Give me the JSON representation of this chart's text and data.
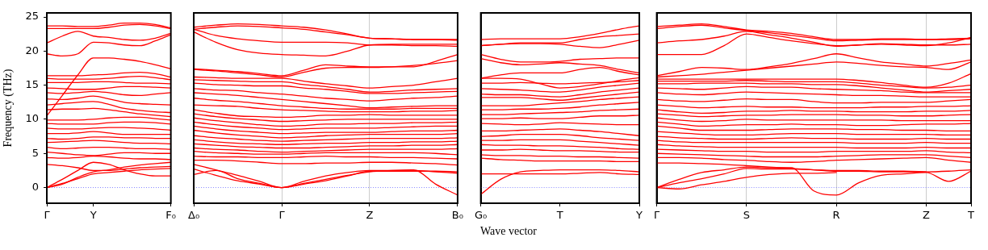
{
  "chart_data": [
    {
      "type": "line",
      "ylabel": "Frequency (THz)",
      "marker": "none",
      "line_style": "solid",
      "categories": [
        "Γ",
        null,
        null,
        "Y",
        null,
        null,
        null,
        null,
        "F₀"
      ],
      "ylim": [
        -2.3,
        25.6
      ],
      "yticks": [
        0,
        5,
        10,
        15,
        20,
        25
      ],
      "ref_lines": [
        {
          "axis": "y",
          "value": 0,
          "color": "#6666ff",
          "line_style": "dotted"
        }
      ],
      "series": [
        {
          "color": "#ff0000",
          "values": [
            23.7,
            23.7,
            23.6,
            23.6,
            23.8,
            24.1,
            24.1,
            23.9,
            23.4
          ]
        },
        {
          "color": "#ff0000",
          "values": [
            23.3,
            23.3,
            23.3,
            23.3,
            23.5,
            23.8,
            23.9,
            23.7,
            23.3
          ]
        },
        {
          "color": "#ff0000",
          "values": [
            21.2,
            22.2,
            22.9,
            22.2,
            22.0,
            21.7,
            21.6,
            21.9,
            22.6
          ]
        },
        {
          "color": "#ff0000",
          "values": [
            19.6,
            19.3,
            19.6,
            21.3,
            21.2,
            20.9,
            20.8,
            21.5,
            22.4
          ]
        },
        {
          "color": "#ff0000",
          "values": [
            10.5,
            13.5,
            16.5,
            19.0,
            19.0,
            18.8,
            18.5,
            18.0,
            17.4
          ]
        },
        {
          "color": "#ff0000",
          "values": [
            16.4,
            16.4,
            16.4,
            16.5,
            16.6,
            16.8,
            16.9,
            16.7,
            16.2
          ]
        },
        {
          "color": "#ff0000",
          "values": [
            16.0,
            15.9,
            15.9,
            15.9,
            16.0,
            16.2,
            16.3,
            16.1,
            15.8
          ]
        },
        {
          "color": "#ff0000",
          "values": [
            15.4,
            15.4,
            15.4,
            15.5,
            15.5,
            15.4,
            15.3,
            15.3,
            15.2
          ]
        },
        {
          "color": "#ff0000",
          "values": [
            14.6,
            14.5,
            14.4,
            14.4,
            14.6,
            14.8,
            14.8,
            14.7,
            14.6
          ]
        },
        {
          "color": "#ff0000",
          "values": [
            13.9,
            13.8,
            13.9,
            14.1,
            13.9,
            13.6,
            13.5,
            13.7,
            13.9
          ]
        },
        {
          "color": "#ff0000",
          "values": [
            13.0,
            12.9,
            13.1,
            13.4,
            13.0,
            12.5,
            12.3,
            12.2,
            12.1
          ]
        },
        {
          "color": "#ff0000",
          "values": [
            12.1,
            12.3,
            12.5,
            12.6,
            12.2,
            11.6,
            11.3,
            11.1,
            11.0
          ]
        },
        {
          "color": "#ff0000",
          "values": [
            11.4,
            11.5,
            11.5,
            11.6,
            11.4,
            11.1,
            10.8,
            10.6,
            10.4
          ]
        },
        {
          "color": "#ff0000",
          "values": [
            9.9,
            9.9,
            9.9,
            10.0,
            10.2,
            10.3,
            10.3,
            10.1,
            9.9
          ]
        },
        {
          "color": "#ff0000",
          "values": [
            9.4,
            9.3,
            9.3,
            9.3,
            9.5,
            9.6,
            9.6,
            9.5,
            9.3
          ]
        },
        {
          "color": "#ff0000",
          "values": [
            8.7,
            8.6,
            8.6,
            8.7,
            8.8,
            8.8,
            8.7,
            8.6,
            8.4
          ]
        },
        {
          "color": "#ff0000",
          "values": [
            7.9,
            7.9,
            8.0,
            8.2,
            8.0,
            7.8,
            7.8,
            7.8,
            7.8
          ]
        },
        {
          "color": "#ff0000",
          "values": [
            7.2,
            7.1,
            7.2,
            7.4,
            7.4,
            7.3,
            7.3,
            7.2,
            7.2
          ]
        },
        {
          "color": "#ff0000",
          "values": [
            6.6,
            6.7,
            6.8,
            6.9,
            6.8,
            6.6,
            6.5,
            6.5,
            6.4
          ]
        },
        {
          "color": "#ff0000",
          "values": [
            5.9,
            5.7,
            5.8,
            5.9,
            5.9,
            5.8,
            5.7,
            5.7,
            5.6
          ]
        },
        {
          "color": "#ff0000",
          "values": [
            5.2,
            5.0,
            4.8,
            4.7,
            4.9,
            5.1,
            5.1,
            5.0,
            5.0
          ]
        },
        {
          "color": "#ff0000",
          "values": [
            4.4,
            4.3,
            4.4,
            4.6,
            4.5,
            4.3,
            4.2,
            4.2,
            4.1
          ]
        },
        {
          "color": "#ff0000",
          "values": [
            3.4,
            3.2,
            2.9,
            2.5,
            2.5,
            2.7,
            2.9,
            3.0,
            3.1
          ]
        },
        {
          "color": "#ff0000",
          "values": [
            0,
            1.2,
            2.5,
            3.7,
            3.4,
            2.6,
            2.0,
            1.7,
            1.7
          ]
        },
        {
          "color": "#ff0000",
          "values": [
            0,
            0.6,
            1.3,
            2.0,
            2.2,
            2.4,
            2.6,
            2.7,
            2.8
          ]
        },
        {
          "color": "#ff0000",
          "values": [
            0,
            0.5,
            1.5,
            2.3,
            2.6,
            3.0,
            3.3,
            3.5,
            3.7
          ]
        }
      ]
    },
    {
      "type": "line",
      "marker": "none",
      "line_style": "solid",
      "grid": "x",
      "tick_labels": "x",
      "categories": [
        "Δ₀",
        null,
        null,
        null,
        "Γ",
        null,
        null,
        null,
        "Z",
        null,
        null,
        null,
        "B₀"
      ],
      "ylim": [
        -2.3,
        25.6
      ],
      "yticks": [
        0,
        5,
        10,
        15,
        20,
        25
      ],
      "ref_lines": [
        {
          "axis": "y",
          "value": 0,
          "color": "#6666ff",
          "line_style": "dotted"
        }
      ],
      "series": [
        {
          "color": "#ff0000",
          "values": [
            23.5,
            23.8,
            24.0,
            23.9,
            23.7,
            23.5,
            23.1,
            22.5,
            21.9,
            21.8,
            21.7,
            21.7,
            21.7
          ]
        },
        {
          "color": "#ff0000",
          "values": [
            23.2,
            23.5,
            23.7,
            23.6,
            23.4,
            23.2,
            22.8,
            22.4,
            21.9,
            21.8,
            21.7,
            21.7,
            21.6
          ]
        },
        {
          "color": "#ff0000",
          "values": [
            23.2,
            22.3,
            21.8,
            21.5,
            21.3,
            21.3,
            21.3,
            21.2,
            20.9,
            20.9,
            20.8,
            20.8,
            20.7
          ]
        },
        {
          "color": "#ff0000",
          "values": [
            22.8,
            21.3,
            20.2,
            19.7,
            19.5,
            19.4,
            19.3,
            20.0,
            20.9,
            21.0,
            21.0,
            21.0,
            21.0
          ]
        },
        {
          "color": "#ff0000",
          "values": [
            17.4,
            17.2,
            17.0,
            16.7,
            16.4,
            17.2,
            18.0,
            17.8,
            17.7,
            17.7,
            17.7,
            18.5,
            19.5
          ]
        },
        {
          "color": "#ff0000",
          "values": [
            17.3,
            17.1,
            16.8,
            16.5,
            16.2,
            16.9,
            17.5,
            17.6,
            17.6,
            17.7,
            17.9,
            18.2,
            18.6
          ]
        },
        {
          "color": "#ff0000",
          "values": [
            16.2,
            16.1,
            16.0,
            16.0,
            16.0,
            15.6,
            15.2,
            14.9,
            14.6,
            14.8,
            15.0,
            15.5,
            16.0
          ]
        },
        {
          "color": "#ff0000",
          "values": [
            15.8,
            15.7,
            15.6,
            15.5,
            15.5,
            15.1,
            14.8,
            14.4,
            14.0,
            14.1,
            14.3,
            14.4,
            14.5
          ]
        },
        {
          "color": "#ff0000",
          "values": [
            15.3,
            15.1,
            15.0,
            14.9,
            14.9,
            14.6,
            14.4,
            14.1,
            13.8,
            13.8,
            13.9,
            14.0,
            14.1
          ]
        },
        {
          "color": "#ff0000",
          "values": [
            14.5,
            14.3,
            14.2,
            13.9,
            13.7,
            13.4,
            13.1,
            12.9,
            12.7,
            12.9,
            13.1,
            13.2,
            13.4
          ]
        },
        {
          "color": "#ff0000",
          "values": [
            13.9,
            13.7,
            13.5,
            13.2,
            12.9,
            12.6,
            12.3,
            12.0,
            11.7,
            11.8,
            11.9,
            12.0,
            12.0
          ]
        },
        {
          "color": "#ff0000",
          "values": [
            13.1,
            12.8,
            12.6,
            12.3,
            12.0,
            11.8,
            11.6,
            11.5,
            11.5,
            11.5,
            11.6,
            11.6,
            11.6
          ]
        },
        {
          "color": "#ff0000",
          "values": [
            12.1,
            12.0,
            11.9,
            11.6,
            11.4,
            11.3,
            11.2,
            11.1,
            11.1,
            11.1,
            11.2,
            11.2,
            11.3
          ]
        },
        {
          "color": "#ff0000",
          "values": [
            11.4,
            10.9,
            10.5,
            10.4,
            10.3,
            10.4,
            10.6,
            10.6,
            10.7,
            10.6,
            10.6,
            10.6,
            10.6
          ]
        },
        {
          "color": "#ff0000",
          "values": [
            10.8,
            10.4,
            10.1,
            9.9,
            9.7,
            9.8,
            9.9,
            10.0,
            10.0,
            10.0,
            10.0,
            10.0,
            10.0
          ]
        },
        {
          "color": "#ff0000",
          "values": [
            10.2,
            9.8,
            9.5,
            9.2,
            9.0,
            9.1,
            9.3,
            9.3,
            9.4,
            9.4,
            9.5,
            9.5,
            9.6
          ]
        },
        {
          "color": "#ff0000",
          "values": [
            9.6,
            9.2,
            8.9,
            8.7,
            8.5,
            8.6,
            8.7,
            8.7,
            8.7,
            8.8,
            8.9,
            9.0,
            9.0
          ]
        },
        {
          "color": "#ff0000",
          "values": [
            9.0,
            8.6,
            8.3,
            8.1,
            7.9,
            8.0,
            8.1,
            8.1,
            8.1,
            8.2,
            8.3,
            8.3,
            8.4
          ]
        },
        {
          "color": "#ff0000",
          "values": [
            8.4,
            8.0,
            7.7,
            7.5,
            7.3,
            7.4,
            7.6,
            7.7,
            7.8,
            7.8,
            7.8,
            7.8,
            7.9
          ]
        },
        {
          "color": "#ff0000",
          "values": [
            7.6,
            7.3,
            7.1,
            6.9,
            6.8,
            6.9,
            7.0,
            7.1,
            7.2,
            7.2,
            7.2,
            7.2,
            7.3
          ]
        },
        {
          "color": "#ff0000",
          "values": [
            7.0,
            6.7,
            6.5,
            6.4,
            6.3,
            6.4,
            6.5,
            6.5,
            6.6,
            6.6,
            6.7,
            6.7,
            6.8
          ]
        },
        {
          "color": "#ff0000",
          "values": [
            6.4,
            6.2,
            6.0,
            5.9,
            5.8,
            5.8,
            5.9,
            6.0,
            6.1,
            6.1,
            6.2,
            6.2,
            6.3
          ]
        },
        {
          "color": "#ff0000",
          "values": [
            5.8,
            5.6,
            5.5,
            5.3,
            5.2,
            5.3,
            5.4,
            5.5,
            5.6,
            5.6,
            5.6,
            5.6,
            5.7
          ]
        },
        {
          "color": "#ff0000",
          "values": [
            5.3,
            5.1,
            5.0,
            4.9,
            4.9,
            5.0,
            5.1,
            5.1,
            5.1,
            5.1,
            5.1,
            5.0,
            4.8
          ]
        },
        {
          "color": "#ff0000",
          "values": [
            4.6,
            4.5,
            4.5,
            4.4,
            4.4,
            4.5,
            4.6,
            4.5,
            4.5,
            4.4,
            4.4,
            4.3,
            4.2
          ]
        },
        {
          "color": "#ff0000",
          "values": [
            4.0,
            4.0,
            3.9,
            3.7,
            3.5,
            3.5,
            3.6,
            3.6,
            3.7,
            3.7,
            3.6,
            3.5,
            3.3
          ]
        },
        {
          "color": "#ff0000",
          "values": [
            1.9,
            2.5,
            1.3,
            0.6,
            0,
            0.9,
            1.7,
            2.2,
            2.5,
            2.5,
            2.5,
            2.3,
            2.1
          ]
        },
        {
          "color": "#ff0000",
          "values": [
            2.7,
            1.8,
            1.0,
            0.5,
            0,
            0.5,
            1.0,
            1.7,
            2.4,
            2.4,
            2.4,
            2.4,
            2.3
          ]
        },
        {
          "color": "#ff0000",
          "values": [
            3.4,
            2.6,
            1.8,
            0.9,
            0,
            0.6,
            1.2,
            1.8,
            2.3,
            2.5,
            2.6,
            0.5,
            -1.1
          ]
        }
      ]
    },
    {
      "type": "line",
      "xlabel": "Wave vector",
      "marker": "none",
      "line_style": "solid",
      "tick_labels": "x",
      "categories": [
        "G₀",
        null,
        null,
        null,
        "T",
        null,
        null,
        null,
        "Y"
      ],
      "ylim": [
        -2.3,
        25.6
      ],
      "yticks": [
        0,
        5,
        10,
        15,
        20,
        25
      ],
      "ref_lines": [
        {
          "axis": "y",
          "value": 0,
          "color": "#6666ff",
          "line_style": "dotted"
        }
      ],
      "series": [
        {
          "color": "#ff0000",
          "values": [
            21.7,
            21.8,
            21.8,
            21.8,
            21.8,
            22.1,
            22.6,
            23.2,
            23.7
          ]
        },
        {
          "color": "#ff0000",
          "values": [
            20.8,
            21.0,
            21.2,
            21.2,
            21.2,
            21.7,
            22.1,
            22.3,
            22.5
          ]
        },
        {
          "color": "#ff0000",
          "values": [
            20.8,
            21.0,
            21.1,
            21.1,
            21.0,
            20.7,
            20.5,
            21.0,
            21.6
          ]
        },
        {
          "color": "#ff0000",
          "values": [
            19.5,
            18.8,
            18.4,
            18.4,
            18.5,
            18.8,
            18.9,
            19.0,
            19.0
          ]
        },
        {
          "color": "#ff0000",
          "values": [
            18.9,
            18.3,
            18.0,
            18.1,
            18.3,
            18.1,
            17.9,
            17.3,
            16.8
          ]
        },
        {
          "color": "#ff0000",
          "values": [
            16.0,
            16.5,
            16.8,
            16.8,
            16.8,
            17.3,
            17.6,
            17.0,
            16.5
          ]
        },
        {
          "color": "#ff0000",
          "values": [
            16.0,
            16.0,
            15.9,
            15.2,
            14.6,
            14.8,
            15.2,
            15.7,
            16.1
          ]
        },
        {
          "color": "#ff0000",
          "values": [
            15.3,
            15.3,
            15.4,
            15.3,
            15.2,
            15.3,
            15.4,
            15.5,
            15.7
          ]
        },
        {
          "color": "#ff0000",
          "values": [
            14.5,
            14.4,
            14.3,
            14.1,
            14.0,
            14.3,
            14.7,
            15.0,
            15.3
          ]
        },
        {
          "color": "#ff0000",
          "values": [
            13.7,
            13.6,
            13.6,
            13.4,
            13.3,
            13.6,
            14.0,
            14.3,
            14.6
          ]
        },
        {
          "color": "#ff0000",
          "values": [
            13.2,
            13.2,
            13.2,
            13.0,
            12.8,
            13.1,
            13.4,
            13.7,
            14.0
          ]
        },
        {
          "color": "#ff0000",
          "values": [
            12.0,
            12.0,
            12.0,
            12.2,
            12.4,
            12.6,
            12.9,
            13.1,
            13.3
          ]
        },
        {
          "color": "#ff0000",
          "values": [
            11.4,
            11.4,
            11.5,
            11.5,
            11.6,
            11.8,
            12.1,
            12.3,
            12.5
          ]
        },
        {
          "color": "#ff0000",
          "values": [
            10.7,
            10.7,
            10.8,
            10.9,
            11.0,
            11.1,
            11.3,
            11.4,
            11.5
          ]
        },
        {
          "color": "#ff0000",
          "values": [
            10.1,
            10.1,
            10.2,
            10.1,
            10.1,
            10.3,
            10.5,
            10.5,
            10.6
          ]
        },
        {
          "color": "#ff0000",
          "values": [
            9.4,
            9.3,
            9.2,
            9.3,
            9.5,
            9.4,
            9.3,
            9.2,
            9.2
          ]
        },
        {
          "color": "#ff0000",
          "values": [
            8.3,
            8.3,
            8.4,
            8.5,
            8.6,
            8.4,
            8.2,
            7.9,
            7.6
          ]
        },
        {
          "color": "#ff0000",
          "values": [
            7.5,
            7.6,
            7.8,
            7.8,
            7.8,
            7.6,
            7.3,
            7.1,
            6.9
          ]
        },
        {
          "color": "#ff0000",
          "values": [
            6.9,
            6.9,
            7.0,
            7.0,
            7.0,
            6.8,
            6.6,
            6.4,
            6.2
          ]
        },
        {
          "color": "#ff0000",
          "values": [
            6.3,
            6.2,
            6.2,
            6.1,
            6.1,
            6.0,
            5.9,
            5.7,
            5.6
          ]
        },
        {
          "color": "#ff0000",
          "values": [
            5.5,
            5.5,
            5.6,
            5.5,
            5.4,
            5.4,
            5.3,
            5.2,
            5.2
          ]
        },
        {
          "color": "#ff0000",
          "values": [
            4.8,
            4.7,
            4.7,
            4.6,
            4.6,
            4.5,
            4.5,
            4.4,
            4.3
          ]
        },
        {
          "color": "#ff0000",
          "values": [
            4.3,
            4.1,
            4.0,
            3.9,
            3.9,
            3.9,
            3.9,
            3.8,
            3.8
          ]
        },
        {
          "color": "#ff0000",
          "values": [
            2.0,
            2.0,
            2.0,
            2.0,
            2.0,
            2.1,
            2.2,
            2.0,
            1.9
          ]
        },
        {
          "color": "#ff0000",
          "values": [
            -1.0,
            1.2,
            2.3,
            2.5,
            2.6,
            2.6,
            2.6,
            2.5,
            2.3
          ]
        }
      ]
    },
    {
      "type": "line",
      "marker": "none",
      "line_style": "solid",
      "grid": "x",
      "tick_labels": "x",
      "categories": [
        "Γ",
        null,
        null,
        null,
        "S",
        null,
        null,
        null,
        "R",
        null,
        null,
        null,
        "Z",
        null,
        "T"
      ],
      "ylim": [
        -2.3,
        25.6
      ],
      "yticks": [
        0,
        5,
        10,
        15,
        20,
        25
      ],
      "ref_lines": [
        {
          "axis": "y",
          "value": 0,
          "color": "#6666ff",
          "line_style": "dotted"
        }
      ],
      "series": [
        {
          "color": "#ff0000",
          "values": [
            23.6,
            23.8,
            24.0,
            23.6,
            23.1,
            22.9,
            22.6,
            22.1,
            21.7,
            21.7,
            21.8,
            21.8,
            21.7,
            21.8,
            21.9
          ]
        },
        {
          "color": "#ff0000",
          "values": [
            23.3,
            23.6,
            23.8,
            23.4,
            23.0,
            22.7,
            22.3,
            21.9,
            21.5,
            21.6,
            21.7,
            21.7,
            21.7,
            21.7,
            21.8
          ]
        },
        {
          "color": "#ff0000",
          "values": [
            21.2,
            21.5,
            21.7,
            22.2,
            22.9,
            22.4,
            21.9,
            21.3,
            20.7,
            20.9,
            21.1,
            21.0,
            20.9,
            20.9,
            21.0
          ]
        },
        {
          "color": "#ff0000",
          "values": [
            19.5,
            19.5,
            19.5,
            20.8,
            22.5,
            22.0,
            21.5,
            21.1,
            20.8,
            20.9,
            21.0,
            20.9,
            20.8,
            21.2,
            22.0
          ]
        },
        {
          "color": "#ff0000",
          "values": [
            16.4,
            17.0,
            17.6,
            17.5,
            17.3,
            17.7,
            18.2,
            18.9,
            19.6,
            19.0,
            18.4,
            18.1,
            17.8,
            18.2,
            18.7
          ]
        },
        {
          "color": "#ff0000",
          "values": [
            16.2,
            16.4,
            16.6,
            16.9,
            17.2,
            17.5,
            17.8,
            18.1,
            18.4,
            18.2,
            17.9,
            17.7,
            17.6,
            17.3,
            18.4
          ]
        },
        {
          "color": "#ff0000",
          "values": [
            15.9,
            15.9,
            15.9,
            15.9,
            15.9,
            15.9,
            15.9,
            15.9,
            15.9,
            15.7,
            15.4,
            15.0,
            14.7,
            15.3,
            16.7
          ]
        },
        {
          "color": "#ff0000",
          "values": [
            15.6,
            15.6,
            15.6,
            15.6,
            15.7,
            15.6,
            15.5,
            15.5,
            15.5,
            15.3,
            15.0,
            14.8,
            14.6,
            14.7,
            15.0
          ]
        },
        {
          "color": "#ff0000",
          "values": [
            15.2,
            15.2,
            15.3,
            15.3,
            15.3,
            15.2,
            15.2,
            15.1,
            15.1,
            14.9,
            14.6,
            14.3,
            14.0,
            14.2,
            14.4
          ]
        },
        {
          "color": "#ff0000",
          "values": [
            14.6,
            14.5,
            14.4,
            14.6,
            14.8,
            14.7,
            14.7,
            14.5,
            14.4,
            14.3,
            14.2,
            14.0,
            13.9,
            13.9,
            13.9
          ]
        },
        {
          "color": "#ff0000",
          "values": [
            13.9,
            13.7,
            13.6,
            13.8,
            14.0,
            13.9,
            13.8,
            13.7,
            13.6,
            13.5,
            13.5,
            13.4,
            13.3,
            13.3,
            13.3
          ]
        },
        {
          "color": "#ff0000",
          "values": [
            12.9,
            12.7,
            12.6,
            12.8,
            13.0,
            12.9,
            12.9,
            12.6,
            12.4,
            12.4,
            12.5,
            12.5,
            12.5,
            12.7,
            12.9
          ]
        },
        {
          "color": "#ff0000",
          "values": [
            12.1,
            11.9,
            11.7,
            11.8,
            11.9,
            11.8,
            11.8,
            11.7,
            11.7,
            11.7,
            11.8,
            11.8,
            11.9,
            11.9,
            12.0
          ]
        },
        {
          "color": "#ff0000",
          "values": [
            11.4,
            11.1,
            10.9,
            11.0,
            11.2,
            11.2,
            11.3,
            11.2,
            11.2,
            11.1,
            11.1,
            11.1,
            11.2,
            11.2,
            11.3
          ]
        },
        {
          "color": "#ff0000",
          "values": [
            10.8,
            10.6,
            10.4,
            10.5,
            10.6,
            10.6,
            10.7,
            10.7,
            10.7,
            10.6,
            10.6,
            10.5,
            10.5,
            10.6,
            10.7
          ]
        },
        {
          "color": "#ff0000",
          "values": [
            10.2,
            9.9,
            9.7,
            9.8,
            10.0,
            9.9,
            9.9,
            9.9,
            9.9,
            9.9,
            9.9,
            9.8,
            9.8,
            9.8,
            9.8
          ]
        },
        {
          "color": "#ff0000",
          "values": [
            9.6,
            9.3,
            9.0,
            9.1,
            9.2,
            9.2,
            9.3,
            9.2,
            9.2,
            9.1,
            9.1,
            9.2,
            9.3,
            9.3,
            9.4
          ]
        },
        {
          "color": "#ff0000",
          "values": [
            9.0,
            8.7,
            8.4,
            8.4,
            8.4,
            8.5,
            8.6,
            8.6,
            8.6,
            8.5,
            8.5,
            8.4,
            8.4,
            8.3,
            8.3
          ]
        },
        {
          "color": "#ff0000",
          "values": [
            8.2,
            8.0,
            7.8,
            7.7,
            7.7,
            7.8,
            7.9,
            7.9,
            7.9,
            7.8,
            7.8,
            7.8,
            7.8,
            7.7,
            7.7
          ]
        },
        {
          "color": "#ff0000",
          "values": [
            7.5,
            7.3,
            7.2,
            7.1,
            7.1,
            7.2,
            7.3,
            7.2,
            7.2,
            7.1,
            7.1,
            7.1,
            7.2,
            7.1,
            7.1
          ]
        },
        {
          "color": "#ff0000",
          "values": [
            6.9,
            6.7,
            6.6,
            6.6,
            6.6,
            6.6,
            6.6,
            6.6,
            6.6,
            6.5,
            6.5,
            6.5,
            6.6,
            6.5,
            6.5
          ]
        },
        {
          "color": "#ff0000",
          "values": [
            6.3,
            6.1,
            6.0,
            5.9,
            5.9,
            5.9,
            5.9,
            5.9,
            5.9,
            5.8,
            5.8,
            5.8,
            5.9,
            5.8,
            5.8
          ]
        },
        {
          "color": "#ff0000",
          "values": [
            5.6,
            5.5,
            5.4,
            5.3,
            5.3,
            5.2,
            5.2,
            5.2,
            5.3,
            5.3,
            5.3,
            5.3,
            5.4,
            5.2,
            5.1
          ]
        },
        {
          "color": "#ff0000",
          "values": [
            5.0,
            4.9,
            4.8,
            4.7,
            4.6,
            4.5,
            4.5,
            4.5,
            4.6,
            4.7,
            4.8,
            4.8,
            4.8,
            4.6,
            4.4
          ]
        },
        {
          "color": "#ff0000",
          "values": [
            4.4,
            4.4,
            4.3,
            4.1,
            4.0,
            3.8,
            3.7,
            3.8,
            4.0,
            4.1,
            4.2,
            4.3,
            4.4,
            4.0,
            3.7
          ]
        },
        {
          "color": "#ff0000",
          "values": [
            3.6,
            3.6,
            3.5,
            3.4,
            3.2,
            3.0,
            2.8,
            2.6,
            2.4,
            2.4,
            2.3,
            2.3,
            2.3,
            2.4,
            2.6
          ]
        },
        {
          "color": "#ff0000",
          "values": [
            0,
            1.2,
            2.2,
            2.6,
            3.0,
            2.9,
            2.9,
            -0.5,
            -1.1,
            0.7,
            1.8,
            2.0,
            2.2,
            0.9,
            2.4
          ]
        },
        {
          "color": "#ff0000",
          "values": [
            0,
            0.7,
            1.3,
            2.0,
            2.8,
            2.7,
            2.7,
            2.6,
            2.5,
            2.5,
            2.4,
            2.4,
            2.3,
            null,
            null
          ]
        },
        {
          "color": "#ff0000",
          "values": [
            0,
            -0.2,
            0.4,
            0.9,
            1.5,
            1.9,
            2.1,
            2.1,
            2.2,
            null,
            null,
            null,
            null,
            null,
            null
          ]
        }
      ]
    }
  ]
}
